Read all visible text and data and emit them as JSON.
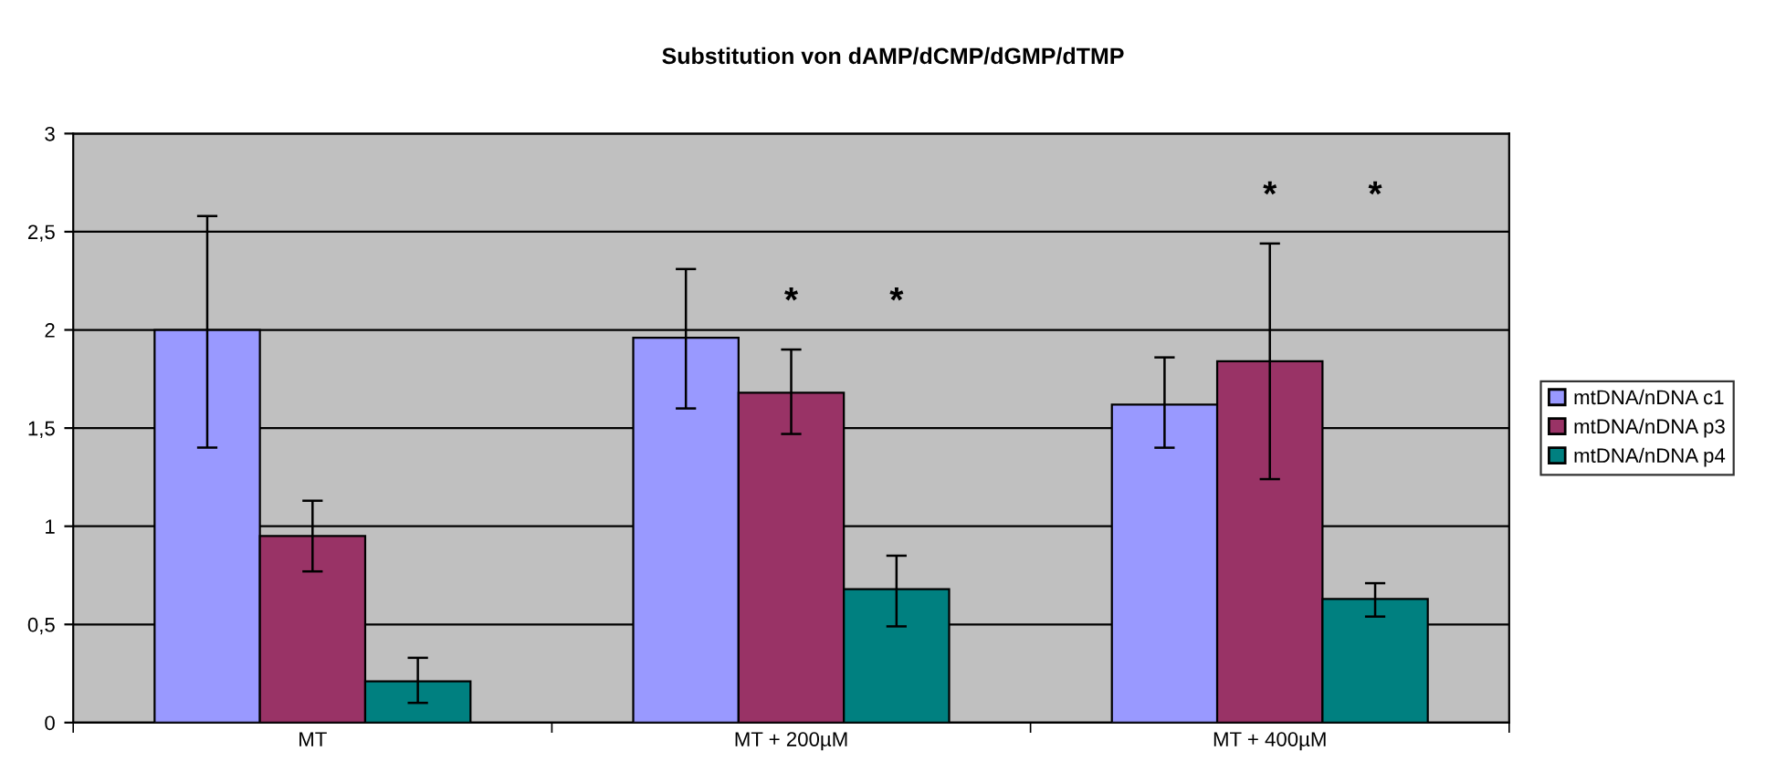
{
  "chart_data": {
    "type": "bar",
    "title": "Substitution von dAMP/dCMP/dGMP/dTMP",
    "categories": [
      "MT",
      "MT + 200µM",
      "MT + 400µM"
    ],
    "series": [
      {
        "name": "mtDNA/nDNA c1",
        "color": "#9999ff",
        "values": [
          2.0,
          1.96,
          1.62
        ],
        "errors": [
          [
            1.4,
            2.58
          ],
          [
            1.6,
            2.31
          ],
          [
            1.4,
            1.86
          ]
        ]
      },
      {
        "name": "mtDNA/nDNA p3",
        "color": "#993366",
        "values": [
          0.95,
          1.68,
          1.84
        ],
        "errors": [
          [
            0.77,
            1.13
          ],
          [
            1.47,
            1.9
          ],
          [
            1.24,
            2.44
          ]
        ]
      },
      {
        "name": "mtDNA/nDNA p4",
        "color": "#008080",
        "values": [
          0.21,
          0.68,
          0.63
        ],
        "errors": [
          [
            0.1,
            0.33
          ],
          [
            0.49,
            0.85
          ],
          [
            0.54,
            0.71
          ]
        ]
      }
    ],
    "annotations": [
      "*",
      "*",
      "*",
      "*"
    ],
    "ylim": [
      0,
      3
    ],
    "yticks": [
      {
        "value": 0,
        "label": "0"
      },
      {
        "value": 0.5,
        "label": "0,5"
      },
      {
        "value": 1,
        "label": "1"
      },
      {
        "value": 1.5,
        "label": "1,5"
      },
      {
        "value": 2,
        "label": "2"
      },
      {
        "value": 2.5,
        "label": "2,5"
      },
      {
        "value": 3,
        "label": "3"
      }
    ],
    "grid": "y",
    "legend": "right"
  }
}
